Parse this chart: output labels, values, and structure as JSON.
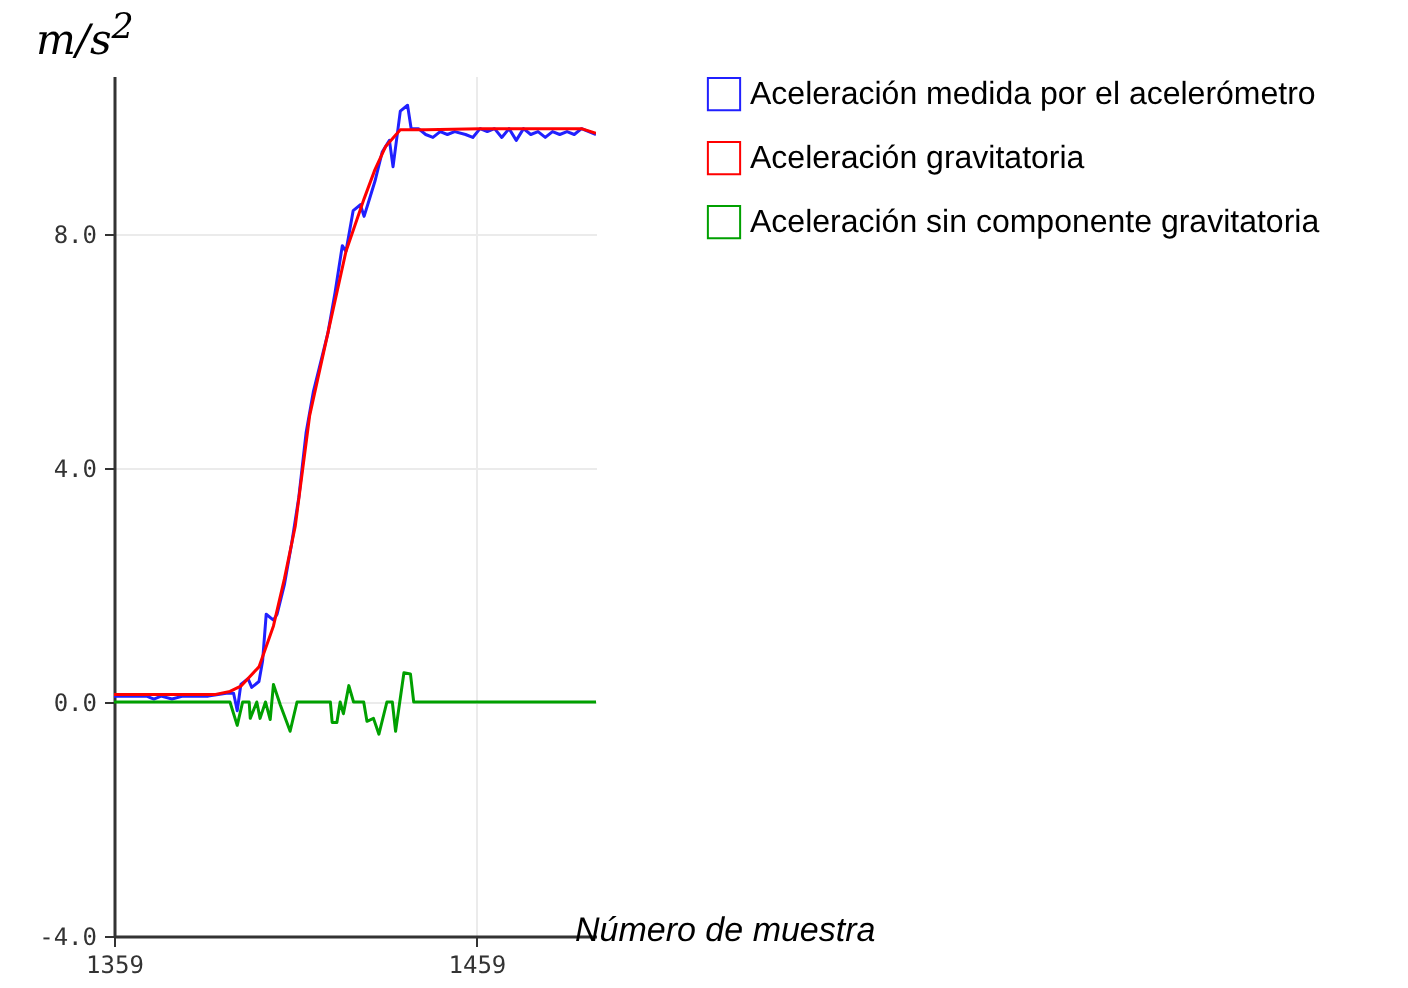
{
  "chart_data": {
    "type": "line",
    "xlabel": "Número de muestra",
    "ylabel": "m/s$^{2}$",
    "xlim": [
      1359,
      1492
    ],
    "ylim": [
      -4,
      10.7
    ],
    "xticks": [
      1359,
      1459
    ],
    "yticks": [
      {
        "value": -4,
        "label": "-4.0"
      },
      {
        "value": 0,
        "label": "0.0"
      },
      {
        "value": 4,
        "label": "4.0"
      },
      {
        "value": 8,
        "label": "8.0"
      }
    ],
    "grid": true,
    "legend": "right",
    "series": [
      {
        "name": "Aceleración medida por el acelerómetro",
        "color": "#2020ff",
        "x": [
          1359,
          1368,
          1370,
          1372,
          1375,
          1378,
          1385,
          1390,
          1392,
          1393,
          1394,
          1396,
          1397,
          1399,
          1400,
          1401,
          1403,
          1404,
          1406,
          1408,
          1410,
          1412,
          1414,
          1416,
          1418,
          1420,
          1422,
          1423,
          1425,
          1427,
          1428,
          1429,
          1431,
          1433,
          1435,
          1436,
          1438,
          1440,
          1441,
          1443,
          1445,
          1447,
          1449,
          1451,
          1453,
          1456,
          1458,
          1460,
          1462,
          1464,
          1466,
          1468,
          1470,
          1472,
          1474,
          1476,
          1478,
          1480,
          1482,
          1484,
          1486,
          1488,
          1490,
          1492
        ],
        "values": [
          0.1,
          0.1,
          0.05,
          0.1,
          0.05,
          0.1,
          0.1,
          0.15,
          0.15,
          -0.15,
          0.3,
          0.4,
          0.25,
          0.35,
          0.7,
          1.5,
          1.4,
          1.5,
          2.0,
          2.7,
          3.5,
          4.6,
          5.3,
          5.8,
          6.3,
          7.0,
          7.8,
          7.7,
          8.4,
          8.5,
          8.3,
          8.5,
          8.9,
          9.4,
          9.6,
          9.15,
          10.1,
          10.2,
          9.8,
          9.8,
          9.7,
          9.65,
          9.75,
          9.7,
          9.75,
          9.7,
          9.65,
          9.8,
          9.75,
          9.8,
          9.65,
          9.8,
          9.6,
          9.8,
          9.7,
          9.75,
          9.65,
          9.75,
          9.7,
          9.75,
          9.7,
          9.8,
          9.75,
          9.7
        ]
      },
      {
        "name": "Aceleración gravitatoria",
        "color": "#ff0000",
        "x": [
          1359,
          1387,
          1391,
          1394,
          1399,
          1403,
          1406,
          1409,
          1413,
          1418,
          1423,
          1428,
          1431,
          1434,
          1438,
          1445,
          1460,
          1475,
          1488,
          1492
        ],
        "values": [
          0.13,
          0.13,
          0.18,
          0.27,
          0.6,
          1.3,
          2.1,
          3.0,
          4.9,
          6.3,
          7.7,
          8.6,
          9.1,
          9.5,
          9.78,
          9.78,
          9.8,
          9.8,
          9.8,
          9.72
        ]
      },
      {
        "name": "Aceleración sin componente gravitatoria",
        "color": "#00a000",
        "x": [
          1359,
          1391,
          1393,
          1394.5,
          1396.3,
          1396.6,
          1398.4,
          1399.3,
          1400.8,
          1402.1,
          1403,
          1404.9,
          1407.6,
          1409.5,
          1418.7,
          1419.2,
          1420.5,
          1421.4,
          1422.3,
          1423.8,
          1425.1,
          1427.9,
          1428.8,
          1430.6,
          1432.1,
          1434.3,
          1435.8,
          1436.7,
          1439,
          1440.8,
          1441.7,
          1492
        ],
        "values": [
          0,
          0,
          -0.4,
          0,
          0,
          -0.28,
          0,
          -0.28,
          0,
          -0.3,
          0.3,
          -0.05,
          -0.5,
          0,
          0,
          -0.35,
          -0.35,
          0,
          -0.2,
          0.28,
          0,
          0,
          -0.33,
          -0.28,
          -0.55,
          0,
          0,
          -0.5,
          0.5,
          0.48,
          0,
          0
        ]
      }
    ]
  }
}
